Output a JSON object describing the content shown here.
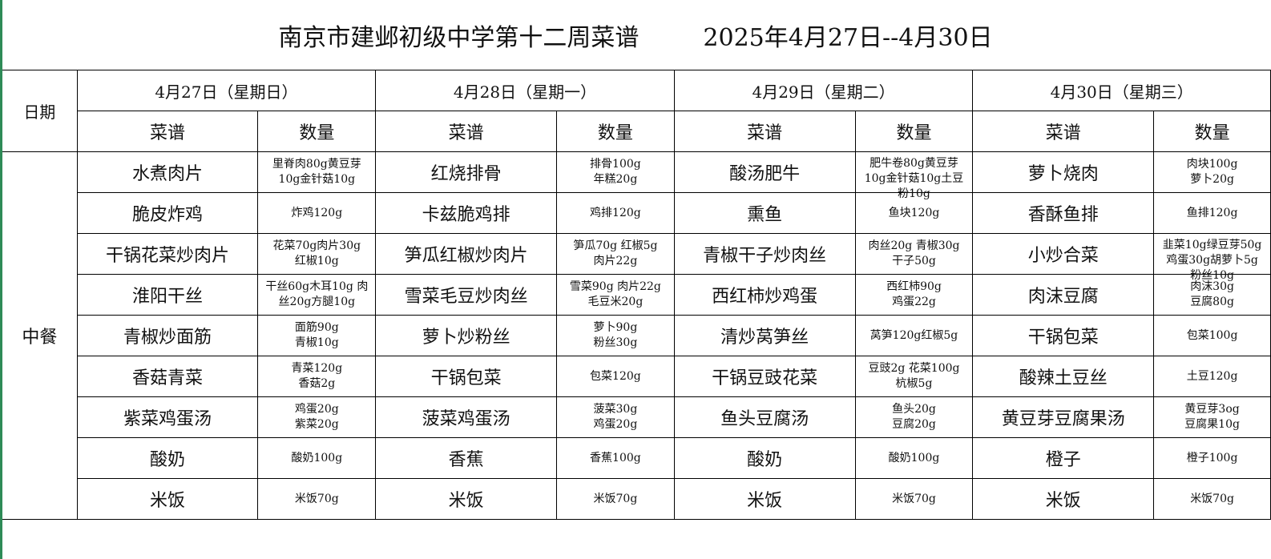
{
  "title": "南京市建邺初级中学第十二周菜谱",
  "date_range": "2025年4月27日--4月30日",
  "date_label": "日期",
  "meal_label": "中餐",
  "dish_header": "菜谱",
  "qty_header": "数量",
  "days": [
    {
      "label": "4月27日（星期日）",
      "items": [
        {
          "dish": "水煮肉片",
          "qty": "里脊肉80g黄豆芽\n10g金针菇10g"
        },
        {
          "dish": "脆皮炸鸡",
          "qty": "炸鸡120g"
        },
        {
          "dish": "干锅花菜炒肉片",
          "qty": "花菜70g肉片30g\n红椒10g"
        },
        {
          "dish": "淮阳干丝",
          "qty": "干丝60g木耳10g 肉\n丝20g方腿10g"
        },
        {
          "dish": "青椒炒面筋",
          "qty": "面筋90g\n青椒10g"
        },
        {
          "dish": "香菇青菜",
          "qty": "青菜120g\n香菇2g"
        },
        {
          "dish": "紫菜鸡蛋汤",
          "qty": "鸡蛋20g\n紫菜20g"
        },
        {
          "dish": "酸奶",
          "qty": "酸奶100g"
        },
        {
          "dish": "米饭",
          "qty": "米饭70g"
        }
      ]
    },
    {
      "label": "4月28日（星期一）",
      "items": [
        {
          "dish": "红烧排骨",
          "qty": "排骨100g\n年糕20g"
        },
        {
          "dish": "卡兹脆鸡排",
          "qty": "鸡排120g"
        },
        {
          "dish": "笋瓜红椒炒肉片",
          "qty": "笋瓜70g 红椒5g\n肉片22g"
        },
        {
          "dish": "雪菜毛豆炒肉丝",
          "qty": "雪菜90g 肉片22g\n毛豆米20g"
        },
        {
          "dish": "萝卜炒粉丝",
          "qty": "萝卜90g\n粉丝30g"
        },
        {
          "dish": "干锅包菜",
          "qty": "包菜120g"
        },
        {
          "dish": "菠菜鸡蛋汤",
          "qty": "菠菜30g\n鸡蛋20g"
        },
        {
          "dish": "香蕉",
          "qty": "香蕉100g"
        },
        {
          "dish": "米饭",
          "qty": "米饭70g"
        }
      ]
    },
    {
      "label": "4月29日（星期二）",
      "items": [
        {
          "dish": "酸汤肥牛",
          "qty": "肥牛卷80g黄豆芽\n10g金针菇10g土豆\n粉10g"
        },
        {
          "dish": "熏鱼",
          "qty": "鱼块120g"
        },
        {
          "dish": "青椒干子炒肉丝",
          "qty": "肉丝20g 青椒30g\n干子50g"
        },
        {
          "dish": "西红柿炒鸡蛋",
          "qty": "西红柿90g\n鸡蛋22g"
        },
        {
          "dish": "清炒莴笋丝",
          "qty": "莴笋120g红椒5g"
        },
        {
          "dish": "干锅豆豉花菜",
          "qty": "豆豉2g 花菜100g\n杭椒5g"
        },
        {
          "dish": "鱼头豆腐汤",
          "qty": "鱼头20g\n豆腐20g"
        },
        {
          "dish": "酸奶",
          "qty": "酸奶100g"
        },
        {
          "dish": "米饭",
          "qty": "米饭70g"
        }
      ]
    },
    {
      "label": "4月30日（星期三）",
      "items": [
        {
          "dish": "萝卜烧肉",
          "qty": "肉块100g\n萝卜20g"
        },
        {
          "dish": "香酥鱼排",
          "qty": "鱼排120g"
        },
        {
          "dish": "小炒合菜",
          "qty": "韭菜10g绿豆芽50g\n鸡蛋30g胡萝卜5g\n粉丝10g"
        },
        {
          "dish": "肉沫豆腐",
          "qty": "肉沫30g\n豆腐80g"
        },
        {
          "dish": "干锅包菜",
          "qty": "包菜100g"
        },
        {
          "dish": "酸辣土豆丝",
          "qty": "土豆120g"
        },
        {
          "dish": "黄豆芽豆腐果汤",
          "qty": "黄豆芽3og\n豆腐果10g"
        },
        {
          "dish": "橙子",
          "qty": "橙子100g"
        },
        {
          "dish": "米饭",
          "qty": "米饭70g"
        }
      ]
    }
  ]
}
